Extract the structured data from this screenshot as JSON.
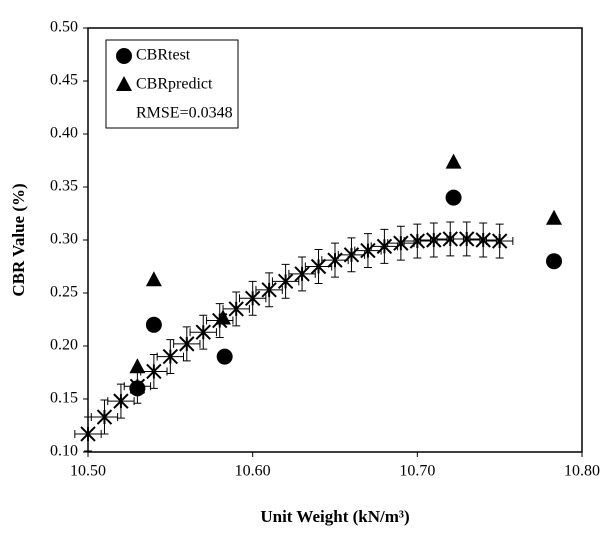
{
  "chart_data": {
    "type": "scatter",
    "xlabel": "Unit Weight (kN/m³)",
    "ylabel": "CBR Value (%)",
    "annotation": "RMSE=0.0348",
    "xlim": [
      10.5,
      10.8
    ],
    "ylim": [
      0.1,
      0.5
    ],
    "xticks": [
      {
        "value": 10.5,
        "label": "10.50"
      },
      {
        "value": 10.6,
        "label": "10.60"
      },
      {
        "value": 10.7,
        "label": "10.70"
      },
      {
        "value": 10.8,
        "label": "10.80"
      }
    ],
    "yticks": [
      {
        "value": 0.1,
        "label": "0.10"
      },
      {
        "value": 0.15,
        "label": "0.15"
      },
      {
        "value": 0.2,
        "label": "0.20"
      },
      {
        "value": 0.25,
        "label": "0.25"
      },
      {
        "value": 0.3,
        "label": "0.30"
      },
      {
        "value": 0.35,
        "label": "0.35"
      },
      {
        "value": 0.4,
        "label": "0.40"
      },
      {
        "value": 0.45,
        "label": "0.45"
      },
      {
        "value": 0.5,
        "label": "0.50"
      }
    ],
    "grid": false,
    "legend": "top-left",
    "series": [
      {
        "name": "CBRtest",
        "marker": "circle",
        "color": "#000000",
        "x": [
          10.53,
          10.54,
          10.583,
          10.722,
          10.783
        ],
        "values": [
          0.16,
          0.22,
          0.19,
          0.34,
          0.28
        ]
      },
      {
        "name": "CBRpredict",
        "marker": "triangle",
        "color": "#000000",
        "x": [
          10.53,
          10.54,
          10.582,
          10.722,
          10.783
        ],
        "values": [
          0.18,
          0.262,
          0.226,
          0.373,
          0.32
        ]
      },
      {
        "marker": "star",
        "color": "#000000",
        "xerr": 0.008,
        "yerr": 0.016,
        "x": [
          10.5,
          10.51,
          10.52,
          10.53,
          10.54,
          10.55,
          10.56,
          10.57,
          10.58,
          10.59,
          10.6,
          10.61,
          10.62,
          10.63,
          10.64,
          10.65,
          10.66,
          10.67,
          10.68,
          10.69,
          10.7,
          10.71,
          10.72,
          10.73,
          10.74,
          10.75
        ],
        "values": [
          0.117,
          0.133,
          0.148,
          0.162,
          0.176,
          0.19,
          0.202,
          0.213,
          0.224,
          0.235,
          0.245,
          0.253,
          0.261,
          0.268,
          0.275,
          0.281,
          0.286,
          0.29,
          0.294,
          0.297,
          0.299,
          0.3,
          0.301,
          0.301,
          0.3,
          0.299
        ]
      }
    ]
  }
}
